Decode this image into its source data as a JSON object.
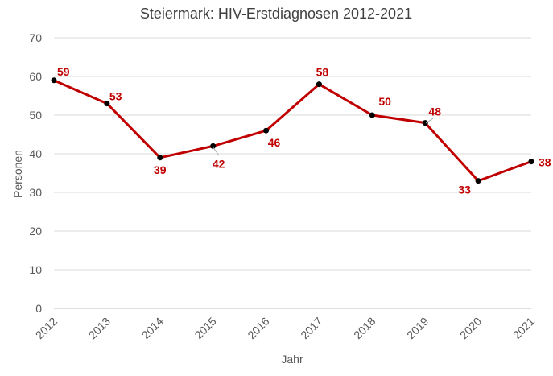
{
  "colors": {
    "line": "#C00000",
    "marker": "#000000",
    "label": "#C00000",
    "grid": "#D9D9D9",
    "leader": "#A6A6A6"
  },
  "chart_data": {
    "type": "line",
    "title": "Steiermark: HIV-Erstdiagnosen 2012-2021",
    "xlabel": "Jahr",
    "ylabel": "Personen",
    "categories": [
      "2012",
      "2013",
      "2014",
      "2015",
      "2016",
      "2017",
      "2018",
      "2019",
      "2020",
      "2021"
    ],
    "series": [
      {
        "values": [
          59,
          53,
          39,
          42,
          46,
          58,
          50,
          48,
          33,
          38
        ]
      }
    ],
    "ylim": [
      0,
      70
    ],
    "yticks": [
      0,
      10,
      20,
      30,
      40,
      50,
      60,
      70
    ],
    "grid": true,
    "legend": "none",
    "data_labels": true
  }
}
